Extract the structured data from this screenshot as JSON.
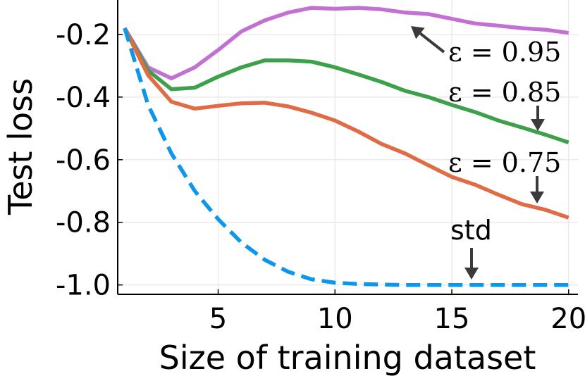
{
  "chart_data": {
    "type": "line",
    "xlabel": "Size of training dataset",
    "ylabel": "Test loss",
    "xlim": [
      0.7,
      20.4
    ],
    "ylim": [
      -1.03,
      -0.09
    ],
    "xticks": [
      5,
      10,
      15,
      20
    ],
    "xtick_labels": [
      "5",
      "10",
      "15",
      "20"
    ],
    "yticks": [
      -1.0,
      -0.8,
      -0.6,
      -0.4,
      -0.2
    ],
    "ytick_labels": [
      "-1.0",
      "-0.8",
      "-0.6",
      "-0.4",
      "-0.2"
    ],
    "grid": true,
    "legend": "none (inline annotations)",
    "x": [
      1,
      2,
      3,
      4,
      5,
      6,
      7,
      8,
      9,
      10,
      11,
      12,
      13,
      14,
      15,
      16,
      17,
      18,
      19,
      20
    ],
    "series": [
      {
        "name": "ε = 0.95",
        "color": "#c271d2",
        "style": "solid",
        "values": [
          -0.18,
          -0.305,
          -0.34,
          -0.305,
          -0.25,
          -0.19,
          -0.155,
          -0.13,
          -0.115,
          -0.118,
          -0.115,
          -0.12,
          -0.13,
          -0.135,
          -0.15,
          -0.165,
          -0.172,
          -0.18,
          -0.185,
          -0.195
        ]
      },
      {
        "name": "ε = 0.85",
        "color": "#3da04a",
        "style": "solid",
        "values": [
          -0.18,
          -0.315,
          -0.375,
          -0.37,
          -0.335,
          -0.305,
          -0.283,
          -0.283,
          -0.287,
          -0.305,
          -0.328,
          -0.352,
          -0.38,
          -0.4,
          -0.425,
          -0.448,
          -0.475,
          -0.497,
          -0.52,
          -0.545
        ]
      },
      {
        "name": "ε = 0.75",
        "color": "#e06b45",
        "style": "solid",
        "values": [
          -0.18,
          -0.33,
          -0.415,
          -0.437,
          -0.428,
          -0.42,
          -0.418,
          -0.43,
          -0.45,
          -0.475,
          -0.51,
          -0.55,
          -0.58,
          -0.618,
          -0.655,
          -0.68,
          -0.712,
          -0.742,
          -0.76,
          -0.785
        ]
      },
      {
        "name": "std",
        "color": "#0d96ea",
        "style": "dashed",
        "values": [
          -0.18,
          -0.425,
          -0.58,
          -0.7,
          -0.79,
          -0.865,
          -0.92,
          -0.958,
          -0.982,
          -0.993,
          -0.997,
          -0.999,
          -1.0,
          -1.0,
          -1.0,
          -1.0,
          -1.0,
          -1.0,
          -1.0,
          -1.0
        ]
      }
    ],
    "annotations": [
      {
        "text": "ε = 0.95",
        "series": "ε = 0.95"
      },
      {
        "text": "ε = 0.85",
        "series": "ε = 0.85"
      },
      {
        "text": "ε = 0.75",
        "series": "ε = 0.75"
      },
      {
        "text": "std",
        "series": "std"
      }
    ]
  }
}
